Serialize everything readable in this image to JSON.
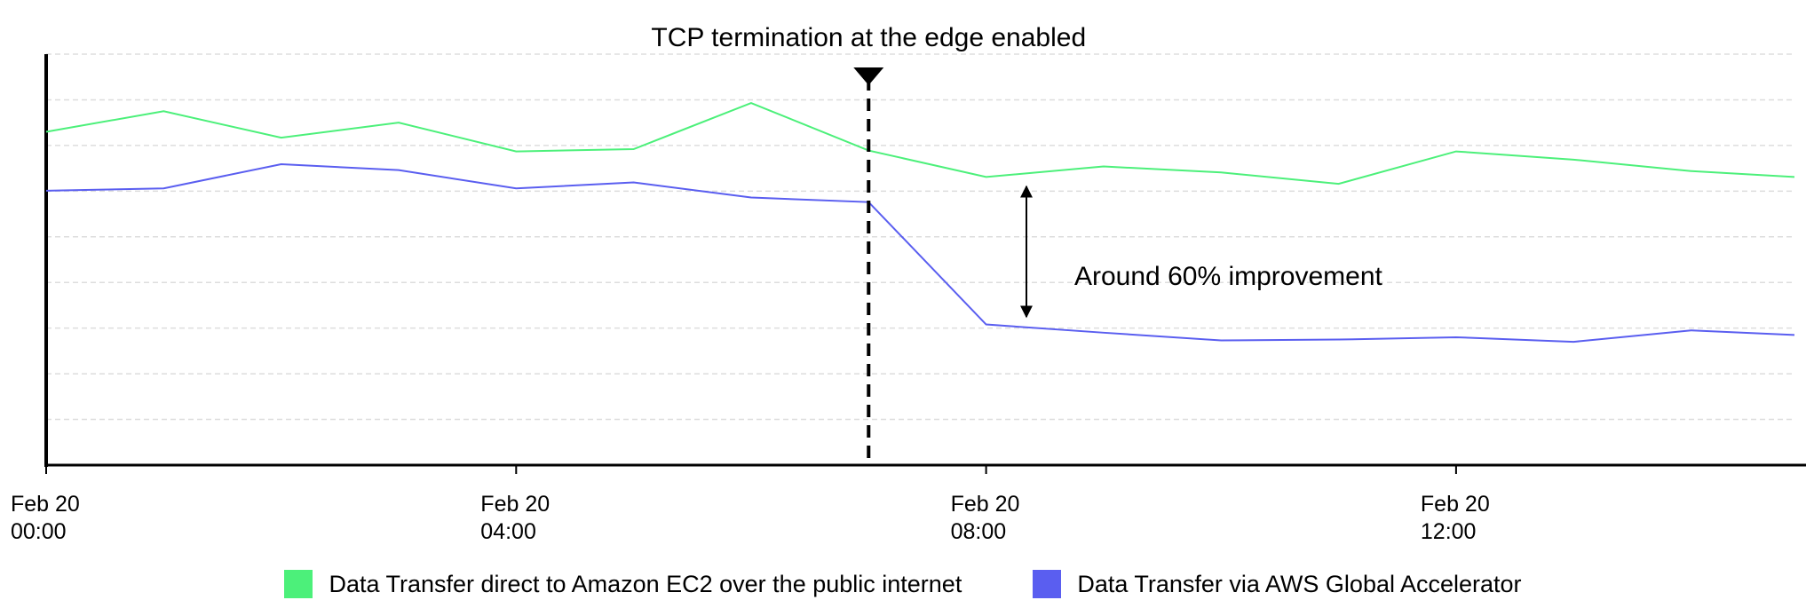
{
  "chart_data": {
    "type": "line",
    "annotations": [
      {
        "text": "TCP termination at the edge enabled",
        "x": 7
      },
      {
        "text": "Around 60% improvement"
      }
    ],
    "x": [
      0,
      1,
      2,
      3,
      4,
      5,
      6,
      7,
      8,
      9,
      10,
      11,
      12,
      13,
      14,
      14.88
    ],
    "series": [
      {
        "name": "Data Transfer direct to Amazon EC2 over the public internet",
        "color": "#4cf07a",
        "values": [
          7.3,
          7.75,
          7.17,
          7.5,
          6.87,
          6.92,
          7.93,
          6.89,
          6.31,
          6.54,
          6.41,
          6.16,
          6.87,
          6.69,
          6.44,
          6.31
        ]
      },
      {
        "name": "Data Transfer via AWS Global Accelerator",
        "color": "#5a5ef0",
        "values": [
          6.01,
          6.06,
          6.59,
          6.46,
          6.06,
          6.19,
          5.86,
          5.76,
          3.08,
          2.9,
          2.73,
          2.75,
          2.8,
          2.7,
          2.95,
          2.85
        ]
      }
    ],
    "xlim": [
      0,
      14.88
    ],
    "xticks": [
      {
        "value": 0,
        "label": "Feb 20\n00:00"
      },
      {
        "value": 4,
        "label": "Feb 20\n04:00"
      },
      {
        "value": 8,
        "label": "Feb 20\n08:00"
      },
      {
        "value": 12,
        "label": "Feb 20\n12:00"
      }
    ],
    "ylim": [
      0,
      9
    ],
    "yticks": [
      1,
      2,
      3,
      4,
      5,
      6,
      7,
      8,
      9
    ],
    "grid": true
  }
}
